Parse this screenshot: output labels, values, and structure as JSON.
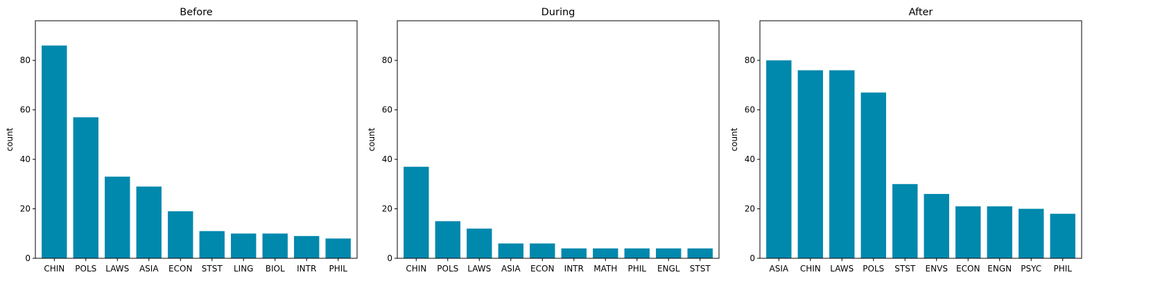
{
  "colors": {
    "bar": "#0088ad",
    "axis": "#000000",
    "background": "#ffffff"
  },
  "chart_data": [
    {
      "type": "bar",
      "title": "Before",
      "xlabel": "",
      "ylabel": "count",
      "ylim": [
        0,
        96
      ],
      "yticks": [
        0,
        20,
        40,
        60,
        80
      ],
      "grid": false,
      "categories": [
        "CHIN",
        "POLS",
        "LAWS",
        "ASIA",
        "ECON",
        "STST",
        "LING",
        "BIOL",
        "INTR",
        "PHIL"
      ],
      "values": [
        86,
        57,
        33,
        29,
        19,
        11,
        10,
        10,
        9,
        8
      ]
    },
    {
      "type": "bar",
      "title": "During",
      "xlabel": "",
      "ylabel": "count",
      "ylim": [
        0,
        96
      ],
      "yticks": [
        0,
        20,
        40,
        60,
        80
      ],
      "grid": false,
      "categories": [
        "CHIN",
        "POLS",
        "LAWS",
        "ASIA",
        "ECON",
        "INTR",
        "MATH",
        "PHIL",
        "ENGL",
        "STST"
      ],
      "values": [
        37,
        15,
        12,
        6,
        6,
        4,
        4,
        4,
        4,
        4
      ]
    },
    {
      "type": "bar",
      "title": "After",
      "xlabel": "",
      "ylabel": "count",
      "ylim": [
        0,
        96
      ],
      "yticks": [
        0,
        20,
        40,
        60,
        80
      ],
      "grid": false,
      "categories": [
        "ASIA",
        "CHIN",
        "LAWS",
        "POLS",
        "STST",
        "ENVS",
        "ECON",
        "ENGN",
        "PSYC",
        "PHIL"
      ],
      "values": [
        80,
        76,
        76,
        67,
        30,
        26,
        21,
        21,
        20,
        18
      ]
    }
  ]
}
